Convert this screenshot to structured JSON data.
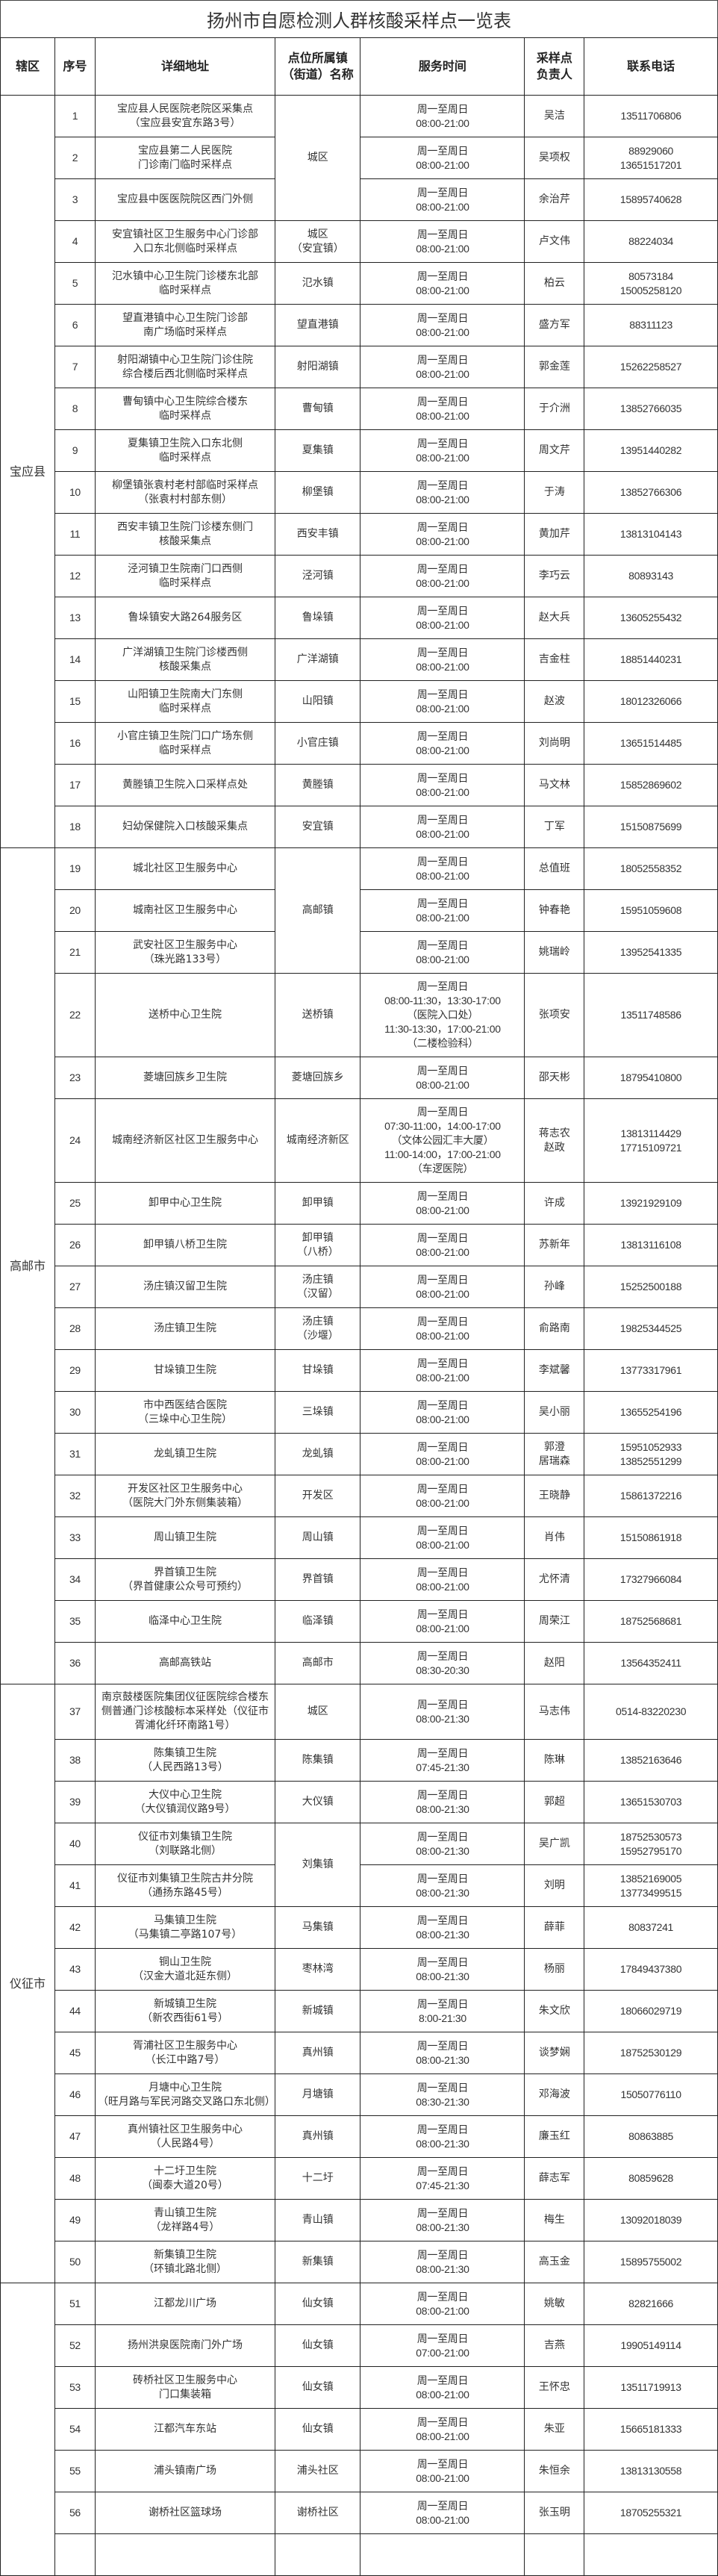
{
  "title": "扬州市自愿检测人群核酸采样点一览表",
  "headers": {
    "district": "辖区",
    "seq": "序号",
    "address": "详细地址",
    "town": "点位所属镇\n（街道）名称",
    "time": "服务时间",
    "person": "采样点\n负责人",
    "phone": "联系电话"
  },
  "districts": [
    {
      "name": "宝应县",
      "rows": [
        {
          "seq": "1",
          "address": "宝应县人民医院老院区采集点\n（宝应县安宜东路3号）",
          "town": "城区",
          "time": "周一至周日\n08:00-21:00",
          "person": "吴洁",
          "phone": "13511706806"
        },
        {
          "seq": "2",
          "address": "宝应县第二人民医院\n门诊南门临时采样点",
          "time": "周一至周日\n08:00-21:00",
          "person": "吴项权",
          "phone": "88929060\n13651517201"
        },
        {
          "seq": "3",
          "address": "宝应县中医医院院区西门外侧",
          "time": "周一至周日\n08:00-21:00",
          "person": "余治芹",
          "phone": "15895740628"
        },
        {
          "seq": "4",
          "address": "安宜镇社区卫生服务中心门诊部\n入口东北侧临时采样点",
          "town": "城区\n（安宜镇）",
          "time": "周一至周日\n08:00-21:00",
          "person": "卢文伟",
          "phone": "88224034"
        },
        {
          "seq": "5",
          "address": "氾水镇中心卫生院门诊楼东北部\n临时采样点",
          "town": "氾水镇",
          "time": "周一至周日\n08:00-21:00",
          "person": "柏云",
          "phone": "80573184\n15005258120"
        },
        {
          "seq": "6",
          "address": "望直港镇中心卫生院门诊部\n南广场临时采样点",
          "town": "望直港镇",
          "time": "周一至周日\n08:00-21:00",
          "person": "盛方军",
          "phone": "88311123"
        },
        {
          "seq": "7",
          "address": "射阳湖镇中心卫生院门诊住院\n综合楼后西北侧临时采样点",
          "town": "射阳湖镇",
          "time": "周一至周日\n08:00-21:00",
          "person": "郭金莲",
          "phone": "15262258527"
        },
        {
          "seq": "8",
          "address": "曹甸镇中心卫生院综合楼东\n临时采样点",
          "town": "曹甸镇",
          "time": "周一至周日\n08:00-21:00",
          "person": "于介洲",
          "phone": "13852766035"
        },
        {
          "seq": "9",
          "address": "夏集镇卫生院入口东北侧\n临时采样点",
          "town": "夏集镇",
          "time": "周一至周日\n08:00-21:00",
          "person": "周文芹",
          "phone": "13951440282"
        },
        {
          "seq": "10",
          "address": "柳堡镇张袁村老村部临时采样点\n（张袁村村部东侧）",
          "town": "柳堡镇",
          "time": "周一至周日\n08:00-21:00",
          "person": "于涛",
          "phone": "13852766306"
        },
        {
          "seq": "11",
          "address": "西安丰镇卫生院门诊楼东侧门\n核酸采集点",
          "town": "西安丰镇",
          "time": "周一至周日\n08:00-21:00",
          "person": "黄加芹",
          "phone": "13813104143"
        },
        {
          "seq": "12",
          "address": "泾河镇卫生院南门口西侧\n临时采样点",
          "town": "泾河镇",
          "time": "周一至周日\n08:00-21:00",
          "person": "李巧云",
          "phone": "80893143"
        },
        {
          "seq": "13",
          "address": "鲁垛镇安大路264服务区",
          "town": "鲁垛镇",
          "time": "周一至周日\n08:00-21:00",
          "person": "赵大兵",
          "phone": "13605255432"
        },
        {
          "seq": "14",
          "address": "广洋湖镇卫生院门诊楼西侧\n核酸采集点",
          "town": "广洋湖镇",
          "time": "周一至周日\n08:00-21:00",
          "person": "吉金柱",
          "phone": "18851440231"
        },
        {
          "seq": "15",
          "address": "山阳镇卫生院南大门东侧\n临时采样点",
          "town": "山阳镇",
          "time": "周一至周日\n08:00-21:00",
          "person": "赵波",
          "phone": "18012326066"
        },
        {
          "seq": "16",
          "address": "小官庄镇卫生院门口广场东侧\n临时采样点",
          "town": "小官庄镇",
          "time": "周一至周日\n08:00-21:00",
          "person": "刘尚明",
          "phone": "13651514485"
        },
        {
          "seq": "17",
          "address": "黄塍镇卫生院入口采样点处",
          "town": "黄塍镇",
          "time": "周一至周日\n08:00-21:00",
          "person": "马文林",
          "phone": "15852869602"
        },
        {
          "seq": "18",
          "address": "妇幼保健院入口核酸采集点",
          "town": "安宜镇",
          "time": "周一至周日\n08:00-21:00",
          "person": "丁军",
          "phone": "15150875699"
        }
      ]
    },
    {
      "name": "高邮市",
      "rows": [
        {
          "seq": "19",
          "address": "城北社区卫生服务中心",
          "town": "高邮镇",
          "time": "周一至周日\n08:00-21:00",
          "person": "总值班",
          "phone": "18052558352"
        },
        {
          "seq": "20",
          "address": "城南社区卫生服务中心",
          "time": "周一至周日\n08:00-21:00",
          "person": "钟春艳",
          "phone": "15951059608"
        },
        {
          "seq": "21",
          "address": "武安社区卫生服务中心\n（珠光路133号）",
          "time": "周一至周日\n08:00-21:00",
          "person": "姚瑞岭",
          "phone": "13952541335"
        },
        {
          "seq": "22",
          "address": "送桥中心卫生院",
          "town": "送桥镇",
          "time": "周一至周日\n08:00-11:30，13:30-17:00\n（医院入口处）\n11:30-13:30，17:00-21:00\n（二楼检验科）",
          "person": "张项安",
          "phone": "13511748586"
        },
        {
          "seq": "23",
          "address": "菱塘回族乡卫生院",
          "town": "菱塘回族乡",
          "time": "周一至周日\n08:00-21:00",
          "person": "邵天彬",
          "phone": "18795410800"
        },
        {
          "seq": "24",
          "address": "城南经济新区社区卫生服务中心",
          "town": "城南经济新区",
          "time": "周一至周日\n07:30-11:00，14:00-17:00\n（文体公园汇丰大厦）\n11:00-14:00，17:00-21:00\n（车逻医院）",
          "person": "蒋志农\n赵政",
          "phone": "13813114429\n17715109721"
        },
        {
          "seq": "25",
          "address": "卸甲中心卫生院",
          "town": "卸甲镇",
          "time": "周一至周日\n08:00-21:00",
          "person": "许成",
          "phone": "13921929109"
        },
        {
          "seq": "26",
          "address": "卸甲镇八桥卫生院",
          "town": "卸甲镇\n（八桥）",
          "time": "周一至周日\n08:00-21:00",
          "person": "苏新年",
          "phone": "13813116108"
        },
        {
          "seq": "27",
          "address": "汤庄镇汉留卫生院",
          "town": "汤庄镇\n（汉留）",
          "time": "周一至周日\n08:00-21:00",
          "person": "孙峰",
          "phone": "15252500188"
        },
        {
          "seq": "28",
          "address": "汤庄镇卫生院",
          "town": "汤庄镇\n（沙堰）",
          "time": "周一至周日\n08:00-21:00",
          "person": "俞路南",
          "phone": "19825344525"
        },
        {
          "seq": "29",
          "address": "甘垛镇卫生院",
          "town": "甘垛镇",
          "time": "周一至周日\n08:00-21:00",
          "person": "李斌馨",
          "phone": "13773317961"
        },
        {
          "seq": "30",
          "address": "市中西医结合医院\n（三垛中心卫生院）",
          "town": "三垛镇",
          "time": "周一至周日\n08:00-21:00",
          "person": "吴小丽",
          "phone": "13655254196"
        },
        {
          "seq": "31",
          "address": "龙虬镇卫生院",
          "town": "龙虬镇",
          "time": "周一至周日\n08:00-21:00",
          "person": "郭澄\n居瑞森",
          "phone": "15951052933\n13852551299"
        },
        {
          "seq": "32",
          "address": "开发区社区卫生服务中心\n（医院大门外东侧集装箱）",
          "town": "开发区",
          "time": "周一至周日\n08:00-21:00",
          "person": "王晓静",
          "phone": "15861372216"
        },
        {
          "seq": "33",
          "address": "周山镇卫生院",
          "town": "周山镇",
          "time": "周一至周日\n08:00-21:00",
          "person": "肖伟",
          "phone": "15150861918"
        },
        {
          "seq": "34",
          "address": "界首镇卫生院\n（界首健康公众号可预约）",
          "town": "界首镇",
          "time": "周一至周日\n08:00-21:00",
          "person": "尤怀清",
          "phone": "17327966084"
        },
        {
          "seq": "35",
          "address": "临泽中心卫生院",
          "town": "临泽镇",
          "time": "周一至周日\n08:00-21:00",
          "person": "周荣江",
          "phone": "18752568681"
        },
        {
          "seq": "36",
          "address": "高邮高铁站",
          "town": "高邮市",
          "time": "周一至周日\n08:30-20:30",
          "person": "赵阳",
          "phone": "13564352411"
        }
      ]
    },
    {
      "name": "仪征市",
      "rows": [
        {
          "seq": "37",
          "address": "南京鼓楼医院集团仪征医院综合楼东侧普通门诊核酸标本采样处（仪征市胥浦化纤环南路1号）",
          "town": "城区",
          "time": "周一至周日\n08:00-21:30",
          "person": "马志伟",
          "phone": "0514-83220230"
        },
        {
          "seq": "38",
          "address": "陈集镇卫生院\n（人民西路13号）",
          "town": "陈集镇",
          "time": "周一至周日\n07:45-21:30",
          "person": "陈琳",
          "phone": "13852163646"
        },
        {
          "seq": "39",
          "address": "大仪中心卫生院\n（大仪镇润仪路9号）",
          "town": "大仪镇",
          "time": "周一至周日\n08:00-21:30",
          "person": "郭超",
          "phone": "13651530703"
        },
        {
          "seq": "40",
          "address": "仪征市刘集镇卫生院\n（刘联路北侧）",
          "town": "刘集镇",
          "time": "周一至周日\n08:00-21:30",
          "person": "吴广凯",
          "phone": "18752530573\n15952795170"
        },
        {
          "seq": "41",
          "address": "仪征市刘集镇卫生院古井分院\n（通扬东路45号）",
          "time": "周一至周日\n08:00-21:30",
          "person": "刘明",
          "phone": "13852169005\n13773499515"
        },
        {
          "seq": "42",
          "address": "马集镇卫生院\n（马集镇二亭路107号）",
          "town": "马集镇",
          "time": "周一至周日\n08:00-21:30",
          "person": "薛菲",
          "phone": "80837241"
        },
        {
          "seq": "43",
          "address": "铜山卫生院\n（汉金大道北延东侧）",
          "town": "枣林湾",
          "time": "周一至周日\n08:00-21:30",
          "person": "杨丽",
          "phone": "17849437380"
        },
        {
          "seq": "44",
          "address": "新城镇卫生院\n（新农西街61号）",
          "town": "新城镇",
          "time": "周一至周日\n8:00-21:30",
          "person": "朱文欣",
          "phone": "18066029719"
        },
        {
          "seq": "45",
          "address": "胥浦社区卫生服务中心\n（长江中路7号）",
          "town": "真州镇",
          "time": "周一至周日\n08:00-21:30",
          "person": "谈梦娴",
          "phone": "18752530129"
        },
        {
          "seq": "46",
          "address": "月塘中心卫生院\n（旺月路与军民河路交叉路口东北侧）",
          "town": "月塘镇",
          "time": "周一至周日\n08:30-21:30",
          "person": "邓海波",
          "phone": "15050776110"
        },
        {
          "seq": "47",
          "address": "真州镇社区卫生服务中心\n（人民路4号）",
          "town": "真州镇",
          "time": "周一至周日\n08:00-21:30",
          "person": "廉玉红",
          "phone": "80863885"
        },
        {
          "seq": "48",
          "address": "十二圩卫生院\n（闽泰大道20号）",
          "town": "十二圩",
          "time": "周一至周日\n07:45-21:30",
          "person": "薛志军",
          "phone": "80859628"
        },
        {
          "seq": "49",
          "address": "青山镇卫生院\n（龙祥路4号）",
          "town": "青山镇",
          "time": "周一至周日\n08:00-21:30",
          "person": "梅生",
          "phone": "13092018039"
        },
        {
          "seq": "50",
          "address": "新集镇卫生院\n（环镇北路北侧）",
          "town": "新集镇",
          "time": "周一至周日\n08:00-21:30",
          "person": "高玉金",
          "phone": "15895755002"
        }
      ]
    },
    {
      "name": "",
      "rows": [
        {
          "seq": "51",
          "address": "江都龙川广场",
          "town": "仙女镇",
          "time": "周一至周日\n08:00-21:00",
          "person": "姚敏",
          "phone": "82821666"
        },
        {
          "seq": "52",
          "address": "扬州洪泉医院南门外广场",
          "town": "仙女镇",
          "time": "周一至周日\n07:00-21:00",
          "person": "吉燕",
          "phone": "19905149114"
        },
        {
          "seq": "53",
          "address": "砖桥社区卫生服务中心\n门口集装箱",
          "town": "仙女镇",
          "time": "周一至周日\n08:00-21:00",
          "person": "王怀忠",
          "phone": "13511719913"
        },
        {
          "seq": "54",
          "address": "江都汽车东站",
          "town": "仙女镇",
          "time": "周一至周日\n08:00-21:00",
          "person": "朱亚",
          "phone": "15665181333"
        },
        {
          "seq": "55",
          "address": "浦头镇南广场",
          "town": "浦头社区",
          "time": "周一至周日\n08:00-21:00",
          "person": "朱恒余",
          "phone": "13813130558"
        },
        {
          "seq": "56",
          "address": "谢桥社区篮球场",
          "town": "谢桥社区",
          "time": "周一至周日\n08:00-21:00",
          "person": "张玉明",
          "phone": "18705255321"
        },
        {}
      ]
    }
  ]
}
